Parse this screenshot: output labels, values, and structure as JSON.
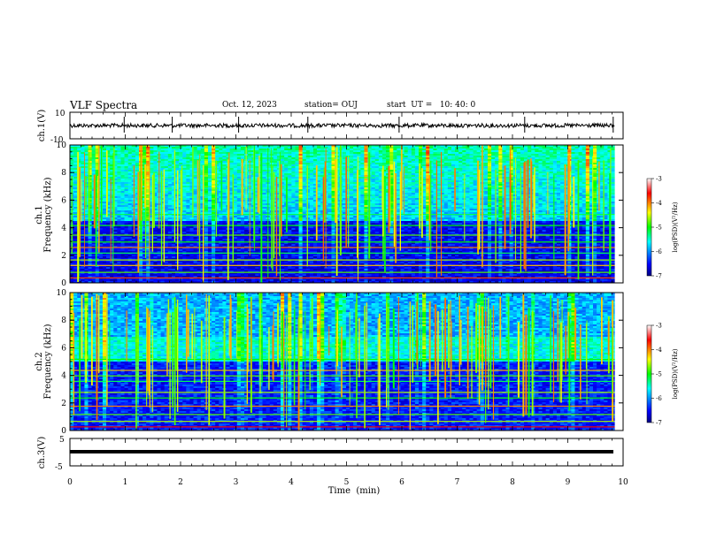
{
  "header": {
    "title": "VLF Spectra",
    "date": "Oct. 12, 2023",
    "station": "station= OUJ",
    "start": "start  UT =   10: 40: 0"
  },
  "chart_data": [
    {
      "type": "line",
      "panel": "ch.1 waveform",
      "ylabel": "ch.1(V)",
      "ylim": [
        -10,
        10
      ],
      "tick_labels": [
        "10",
        "-10"
      ],
      "baseline": 0,
      "color": "#000000",
      "spike_times_min": [
        0.98,
        1.85,
        3.05,
        4.3,
        5.95,
        8.22,
        9.82
      ]
    },
    {
      "type": "heatmap",
      "panel": "ch.1 spectrogram",
      "ylabel_line1": "ch.1",
      "ylabel_line2": "Frequency (kHz)",
      "ylim": [
        0,
        10
      ],
      "tick_labels": [
        "0",
        "2",
        "4",
        "6",
        "8",
        "10"
      ],
      "colorbar": {
        "label": "log(PSD)(V²/Hz)",
        "range": [
          -7,
          -3
        ],
        "tick_labels": [
          "-3",
          "-4",
          "-5",
          "-6",
          "-7"
        ]
      }
    },
    {
      "type": "heatmap",
      "panel": "ch.2 spectrogram",
      "ylabel_line1": "ch.2",
      "ylabel_line2": "Frequency (kHz)",
      "ylim": [
        0,
        10
      ],
      "tick_labels": [
        "0",
        "2",
        "4",
        "6",
        "8",
        "10"
      ],
      "colorbar": {
        "label": "log(PSD)(V²/Hz)",
        "range": [
          -7,
          -3
        ],
        "tick_labels": [
          "-3",
          "-4",
          "-5",
          "-6",
          "-7"
        ]
      }
    },
    {
      "type": "line",
      "panel": "ch.3 waveform",
      "ylabel": "ch.3(V)",
      "ylim": [
        -5,
        5
      ],
      "tick_labels": [
        "5",
        "-5"
      ],
      "baseline": -1,
      "color": "#000000"
    }
  ],
  "x_axis": {
    "label": "Time  (min)",
    "xlim": [
      0,
      10
    ],
    "tick_labels": [
      "0",
      "1",
      "2",
      "3",
      "4",
      "5",
      "6",
      "7",
      "8",
      "9",
      "10"
    ],
    "data_end_min": 9.85
  }
}
